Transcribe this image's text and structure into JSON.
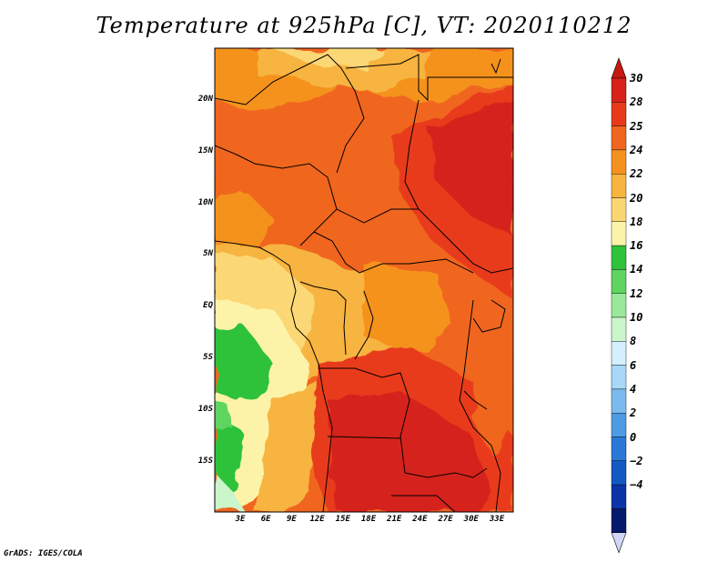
{
  "title": "Temperature at 925hPa [C], VT: 2020110212",
  "credit": "GrADS: IGES/COLA",
  "map": {
    "lat_labels": [
      "20N",
      "15N",
      "10N",
      "5N",
      "EQ",
      "5S",
      "10S",
      "15S"
    ],
    "lon_labels": [
      "3E",
      "6E",
      "9E",
      "12E",
      "15E",
      "18E",
      "21E",
      "24E",
      "27E",
      "30E",
      "33E"
    ]
  },
  "colorbar": {
    "labels": [
      "30",
      "28",
      "25",
      "24",
      "22",
      "20",
      "18",
      "16",
      "14",
      "12",
      "10",
      "8",
      "6",
      "4",
      "2",
      "0",
      "−2",
      "−4"
    ],
    "colors": [
      "#d6221a",
      "#e83a1b",
      "#f0661f",
      "#f5921f",
      "#f7b43f",
      "#fbd774",
      "#fdf3a8",
      "#2fc23a",
      "#5fd460",
      "#9ae89a",
      "#cbf5cb",
      "#d4effd",
      "#a8d8f7",
      "#7bbaef",
      "#4e9be4",
      "#2c78d6",
      "#1458c4",
      "#0a34a8",
      "#061a6b"
    ],
    "over_color": "#c41a12",
    "under_color": "#d0d6f5"
  }
}
